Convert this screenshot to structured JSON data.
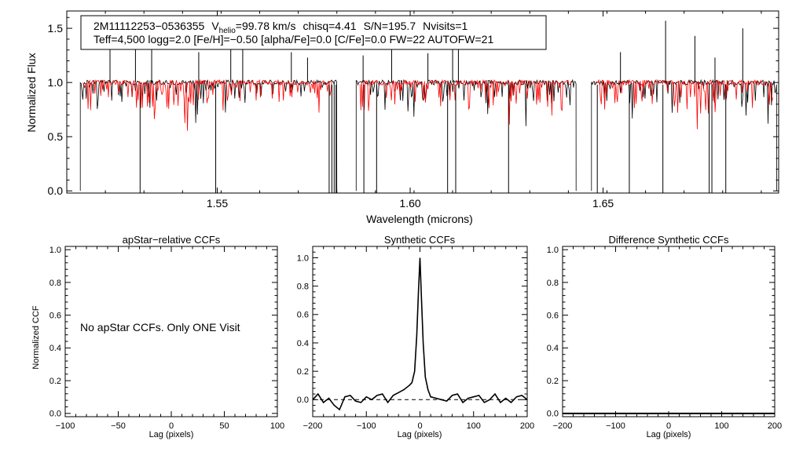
{
  "chart_data": [
    {
      "type": "line",
      "name": "spectrum",
      "annotation_line1": {
        "star": "2M11112253−0536355",
        "v_prefix": "V",
        "v_sub": "helio",
        "v_rest": "=99.78 km/s",
        "chisq": "chisq=4.41",
        "sn": "S/N=195.7",
        "nvisits": "Nvisits=1"
      },
      "annotation_line2": "Teff=4,500 logg=2.0 [Fe/H]=−0.50 [alpha/Fe]=0.0 [C/Fe]=0.0 FW=22 AUTOFW=21",
      "xlabel": "Wavelength (microns)",
      "ylabel": "Normalized Flux",
      "xlim": [
        1.511,
        1.6955
      ],
      "ylim": [
        -0.02,
        1.66
      ],
      "xticks": [
        {
          "v": 1.55,
          "label": "1.55"
        },
        {
          "v": 1.6,
          "label": "1.60"
        },
        {
          "v": 1.65,
          "label": "1.65"
        }
      ],
      "yticks": [
        {
          "v": 0.0,
          "label": "0.0"
        },
        {
          "v": 0.5,
          "label": "0.5"
        },
        {
          "v": 1.0,
          "label": "1.0"
        },
        {
          "v": 1.5,
          "label": "1.5"
        }
      ],
      "chips": [
        [
          1.5145,
          1.581
        ],
        [
          1.586,
          1.643
        ],
        [
          1.647,
          1.695
        ]
      ],
      "model_chips": [
        [
          1.5152,
          1.58
        ],
        [
          1.587,
          1.642
        ],
        [
          1.648,
          1.694
        ]
      ],
      "observed_color": "#000000",
      "model_color": "#ff0000",
      "deep_lines": [
        1.53,
        1.5496,
        1.579,
        1.5797,
        1.5803,
        1.5808,
        1.588,
        1.5913,
        1.6097,
        1.6118,
        1.6255,
        1.6485,
        1.6568,
        1.6655,
        1.6775,
        1.6782,
        1.6818
      ],
      "emission_spikes": [
        {
          "x": 1.5222,
          "y": 1.42
        },
        {
          "x": 1.5288,
          "y": 1.43
        },
        {
          "x": 1.533,
          "y": 1.43
        },
        {
          "x": 1.5452,
          "y": 1.28
        },
        {
          "x": 1.5535,
          "y": 1.35
        },
        {
          "x": 1.5566,
          "y": 1.35
        },
        {
          "x": 1.5692,
          "y": 1.28
        },
        {
          "x": 1.5734,
          "y": 1.23
        },
        {
          "x": 1.5878,
          "y": 1.25
        },
        {
          "x": 1.5952,
          "y": 1.33
        },
        {
          "x": 1.6046,
          "y": 1.27
        },
        {
          "x": 1.611,
          "y": 1.55
        },
        {
          "x": 1.6125,
          "y": 1.37
        },
        {
          "x": 1.6545,
          "y": 1.28
        },
        {
          "x": 1.6662,
          "y": 1.57
        },
        {
          "x": 1.6738,
          "y": 1.43
        },
        {
          "x": 1.679,
          "y": 1.23
        },
        {
          "x": 1.6862,
          "y": 1.5
        }
      ]
    },
    {
      "type": "line",
      "name": "apstar-ccf",
      "title": "apStar−relative CCFs",
      "xlabel": "Lag (pixels)",
      "ylabel": "Normalized CCF",
      "xlim": [
        -100,
        100
      ],
      "ylim": [
        -0.02,
        1.02
      ],
      "xticks": [
        {
          "v": -100,
          "label": "−100"
        },
        {
          "v": -50,
          "label": "−50"
        },
        {
          "v": 0,
          "label": "0"
        },
        {
          "v": 50,
          "label": "50"
        },
        {
          "v": 100,
          "label": "100"
        }
      ],
      "yticks": [
        {
          "v": 0,
          "label": "0.0"
        },
        {
          "v": 0.2,
          "label": "0.2"
        },
        {
          "v": 0.4,
          "label": "0.4"
        },
        {
          "v": 0.6,
          "label": "0.6"
        },
        {
          "v": 0.8,
          "label": "0.8"
        },
        {
          "v": 1.0,
          "label": "1.0"
        }
      ],
      "message": "No apStar CCFs.  Only ONE Visit"
    },
    {
      "type": "line",
      "name": "synthetic-ccf",
      "title": "Synthetic CCFs",
      "xlabel": "Lag (pixels)",
      "xlim": [
        -200,
        200
      ],
      "ylim": [
        -0.12,
        1.08
      ],
      "xticks": [
        {
          "v": -200,
          "label": "−200"
        },
        {
          "v": -100,
          "label": "−100"
        },
        {
          "v": 0,
          "label": "0"
        },
        {
          "v": 100,
          "label": "100"
        },
        {
          "v": 200,
          "label": "200"
        }
      ],
      "yticks": [
        {
          "v": 0,
          "label": "0.0"
        },
        {
          "v": 0.2,
          "label": "0.2"
        },
        {
          "v": 0.4,
          "label": "0.4"
        },
        {
          "v": 0.6,
          "label": "0.6"
        },
        {
          "v": 0.8,
          "label": "0.8"
        },
        {
          "v": 1.0,
          "label": "1.0"
        }
      ],
      "baseline": 0.0,
      "x": [
        -200,
        -190,
        -180,
        -170,
        -160,
        -150,
        -140,
        -130,
        -120,
        -110,
        -100,
        -90,
        -80,
        -70,
        -60,
        -50,
        -40,
        -30,
        -20,
        -15,
        -10,
        -6,
        -3,
        0,
        3,
        6,
        10,
        15,
        20,
        30,
        40,
        50,
        60,
        70,
        80,
        90,
        100,
        110,
        120,
        130,
        140,
        150,
        160,
        170,
        180,
        190,
        200
      ],
      "y": [
        0.0,
        0.04,
        -0.02,
        0.01,
        -0.04,
        -0.07,
        0.02,
        0.03,
        -0.01,
        -0.02,
        0.02,
        0.0,
        0.03,
        0.04,
        -0.02,
        0.03,
        0.05,
        0.07,
        0.1,
        0.12,
        0.2,
        0.45,
        0.75,
        1.0,
        0.7,
        0.4,
        0.16,
        0.07,
        0.02,
        0.01,
        0.0,
        -0.01,
        0.03,
        0.04,
        -0.02,
        0.01,
        0.02,
        0.03,
        -0.02,
        0.0,
        0.04,
        -0.02,
        0.01,
        -0.02,
        0.02,
        0.03,
        0.0
      ]
    },
    {
      "type": "line",
      "name": "difference-ccf",
      "title": "Difference Synthetic CCFs",
      "xlabel": "Lag (pixels)",
      "xlim": [
        -200,
        200
      ],
      "ylim": [
        -0.02,
        1.02
      ],
      "xticks": [
        {
          "v": -200,
          "label": "−200"
        },
        {
          "v": -100,
          "label": "−100"
        },
        {
          "v": 0,
          "label": "0"
        },
        {
          "v": 100,
          "label": "100"
        },
        {
          "v": 200,
          "label": "200"
        }
      ],
      "yticks": [
        {
          "v": 0,
          "label": "0.0"
        },
        {
          "v": 0.2,
          "label": "0.2"
        },
        {
          "v": 0.4,
          "label": "0.4"
        },
        {
          "v": 0.6,
          "label": "0.6"
        },
        {
          "v": 0.8,
          "label": "0.8"
        },
        {
          "v": 1.0,
          "label": "1.0"
        }
      ],
      "series_value": 0.0
    }
  ]
}
